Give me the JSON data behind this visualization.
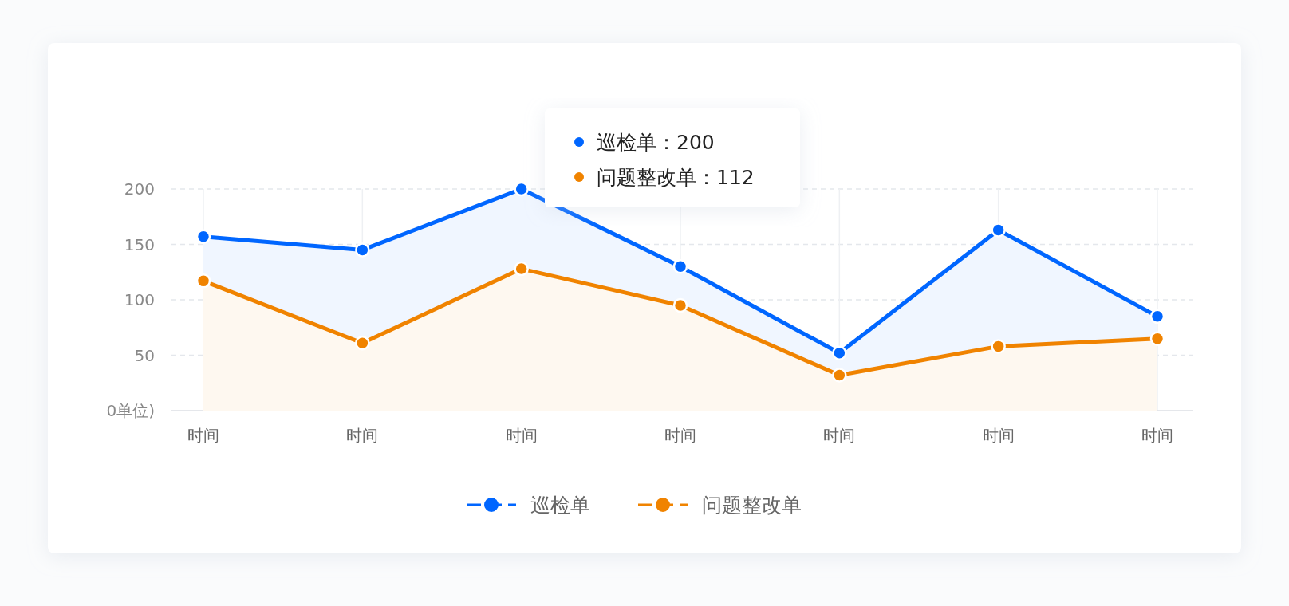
{
  "chart_data": {
    "type": "area",
    "categories": [
      "时间",
      "时间",
      "时间",
      "时间",
      "时间",
      "时间",
      "时间"
    ],
    "series": [
      {
        "name": "巡检单",
        "color": "#0066ff",
        "values": [
          157,
          145,
          200,
          130,
          52,
          163,
          85
        ]
      },
      {
        "name": "问题整改单",
        "color": "#f08300",
        "values": [
          117,
          61,
          128,
          95,
          32,
          58,
          65
        ]
      }
    ],
    "ylim": [
      0,
      200
    ],
    "yticks": [
      {
        "value": 0,
        "label": "0单位)"
      },
      50,
      100,
      150,
      200
    ],
    "grid": true,
    "legend": "bottom",
    "marker": "circle",
    "line_style": "solid",
    "annotations": [
      "巡检单：200",
      "问题整改单：112"
    ]
  }
}
